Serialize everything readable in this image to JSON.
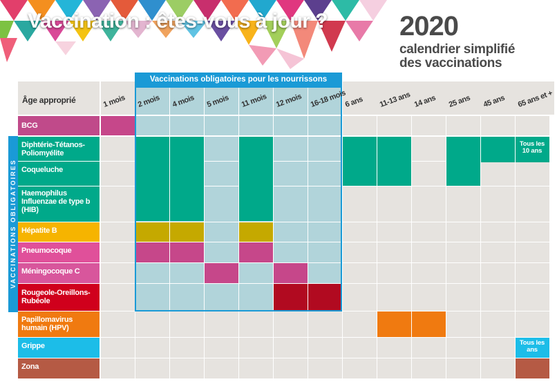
{
  "header": {
    "title": "Vaccination : êtes-vous à jour ?",
    "year": "2020",
    "subtitle_line1": "calendrier simplifié",
    "subtitle_line2": "des vaccinations"
  },
  "table": {
    "age_header": "Âge approprié",
    "mandatory_infant_header": "Vaccinations obligatoires pour les nourrissons",
    "mandatory_side_label": "VACCINATIONS OBLIGATOIRES",
    "ages": [
      "1 mois",
      "2 mois",
      "4 mois",
      "5 mois",
      "11 mois",
      "12 mois",
      "16-18 mois",
      "6 ans",
      "11-13 ans",
      "14 ans",
      "25 ans",
      "45 ans",
      "65 ans et +"
    ],
    "rows": [
      {
        "label": "BCG",
        "color": "#c04a8a",
        "cells": [
          0
        ]
      },
      {
        "label": "Diphtérie-Tétanos-Poliomyélite",
        "color": "#00a98a",
        "cells": [
          1,
          2,
          4,
          7,
          8,
          10,
          11,
          12
        ],
        "note": {
          "col": 12,
          "text": "Tous les 10 ans"
        }
      },
      {
        "label": "Coqueluche",
        "color": "#00a98a",
        "cells": [
          1,
          2,
          4,
          7,
          8,
          10
        ]
      },
      {
        "label": "Haemophilus Influenzae de type b (HIB)",
        "color": "#00a98a",
        "cells": [
          1,
          2,
          4
        ]
      },
      {
        "label": "Hépatite B",
        "color": "#f6b400",
        "cells": [
          1,
          2,
          4
        ]
      },
      {
        "label": "Pneumocoque",
        "color": "#e0509a",
        "cells": [
          1,
          2,
          4
        ]
      },
      {
        "label": "Méningocoque C",
        "color": "#d8569c",
        "cells": [
          3,
          5
        ]
      },
      {
        "label": "Rougeole-Oreillons-Rubéole",
        "color": "#d0001c",
        "cells": [
          5,
          6
        ]
      },
      {
        "label": "Papillomavirus humain (HPV)",
        "color": "#f07a10",
        "cells": [
          8
        ]
      },
      {
        "label": "Grippe",
        "color": "#1cbde8",
        "cells": [
          12
        ],
        "note": {
          "col": 12,
          "text": "Tous les ans"
        }
      },
      {
        "label": "Zona",
        "color": "#b55a44",
        "cells": [
          12
        ]
      }
    ]
  },
  "colors": {
    "blue": "#1a9ad6",
    "grid_gray": "#e6e3df",
    "grid_blue": "#b1d4da",
    "teal": "#00a98a",
    "olive": "#c5a900",
    "pink": "#c6478a",
    "red": "#b10a20",
    "orange": "#f07a10",
    "brown": "#b55a44"
  }
}
